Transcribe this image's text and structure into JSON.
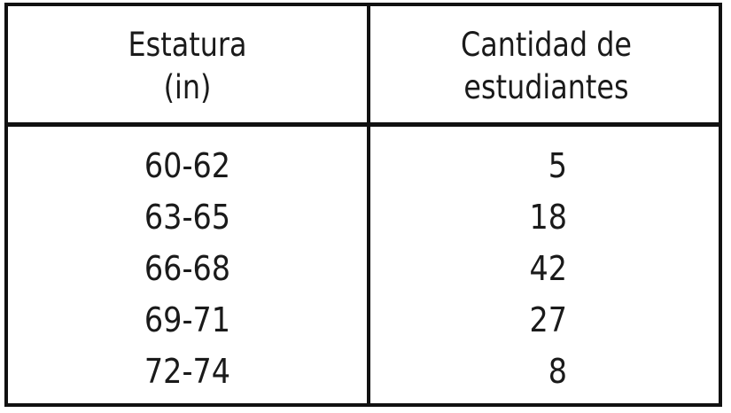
{
  "chart_data": {
    "type": "table",
    "columns": [
      "Estatura (in)",
      "Cantidad de estudiantes"
    ],
    "header_lines": {
      "left": [
        "Estatura",
        "(in)"
      ],
      "right": [
        "Cantidad de",
        "estudiantes"
      ]
    },
    "rows": [
      {
        "range": "60-62",
        "count": "5"
      },
      {
        "range": "63-65",
        "count": "18"
      },
      {
        "range": "66-68",
        "count": "42"
      },
      {
        "range": "69-71",
        "count": "27"
      },
      {
        "range": "72-74",
        "count": "8"
      }
    ]
  }
}
